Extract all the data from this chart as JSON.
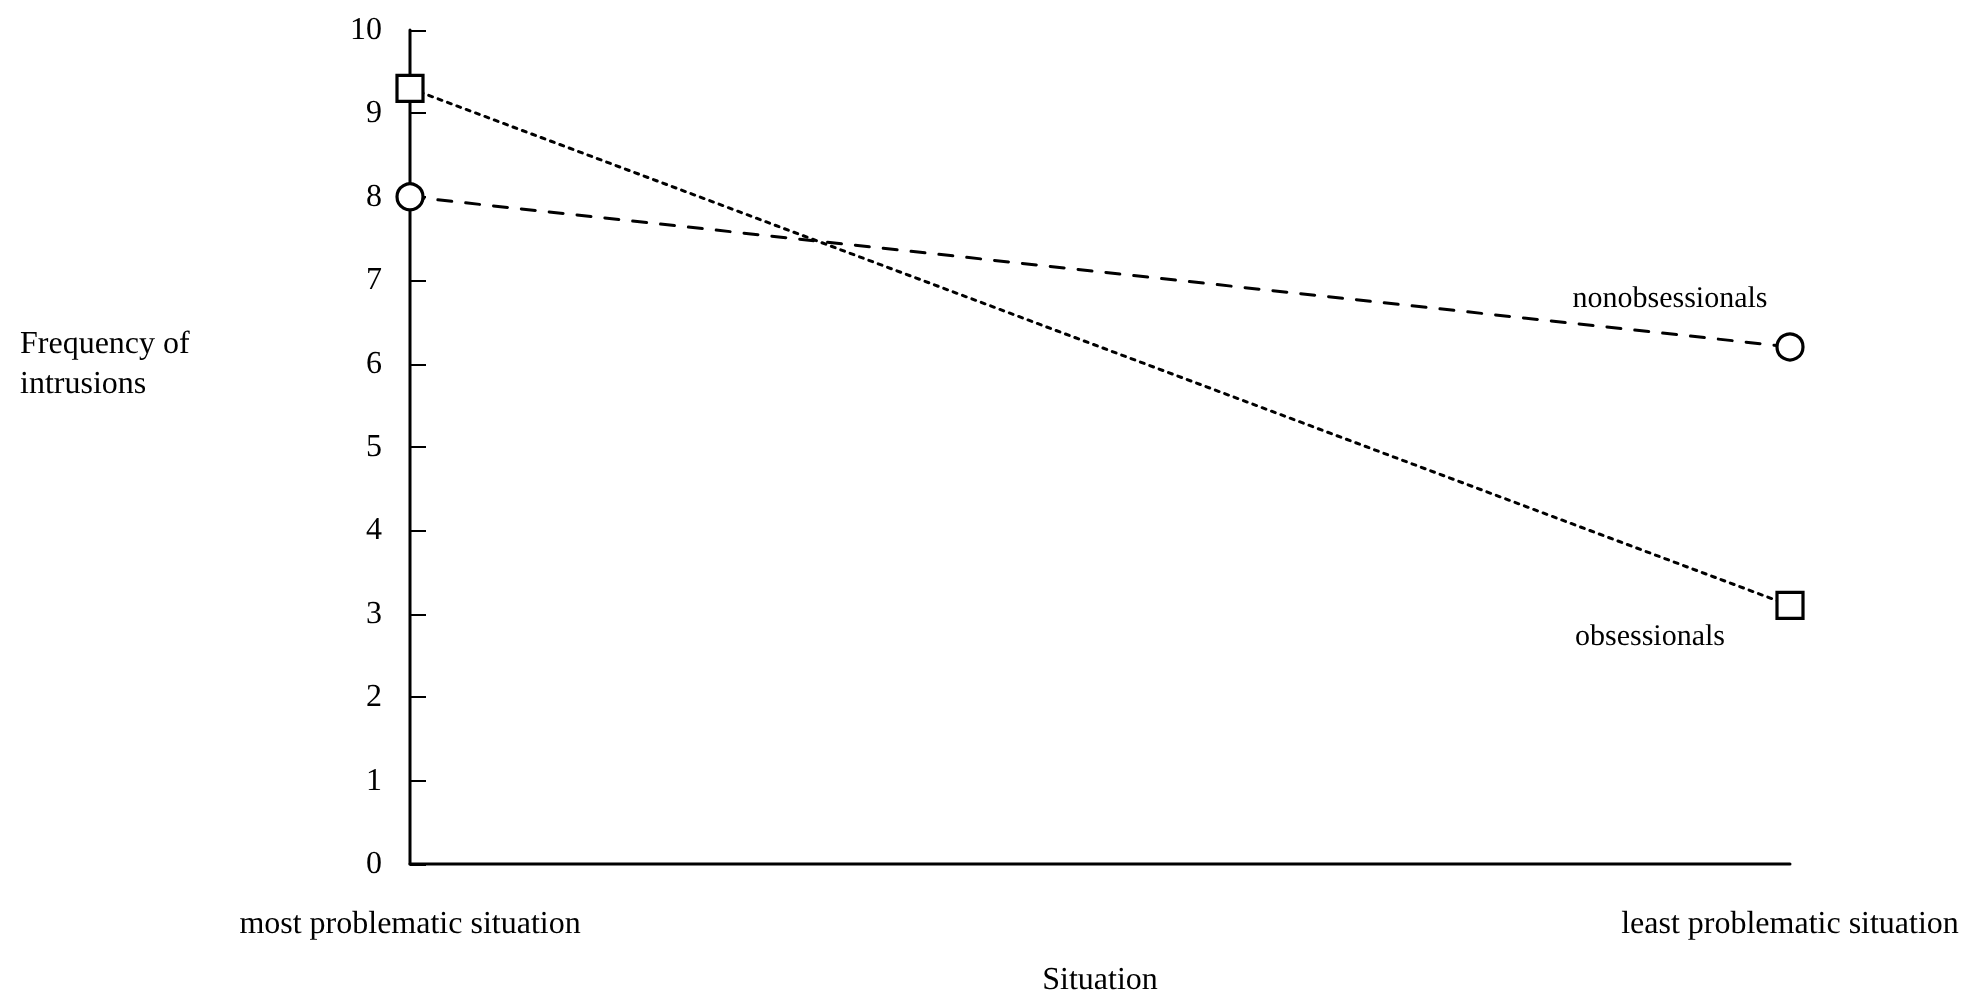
{
  "chart_data": {
    "type": "line",
    "xlabel": "Situation",
    "ylabel": "Frequency of intrusions",
    "categories": [
      "most problematic situation",
      "least problematic situation"
    ],
    "series": [
      {
        "name": "nonobsessionals",
        "color": "#000000",
        "marker": "circle",
        "line_style": "dashed",
        "values": [
          8.0,
          6.2
        ]
      },
      {
        "name": "obsessionals",
        "color": "#000000",
        "marker": "square",
        "line_style": "dotted",
        "values": [
          9.3,
          3.1
        ]
      }
    ],
    "ylim": [
      0,
      10
    ],
    "yticks": [
      0,
      1,
      2,
      3,
      4,
      5,
      6,
      7,
      8,
      9,
      10
    ],
    "grid": false,
    "legend": false
  }
}
